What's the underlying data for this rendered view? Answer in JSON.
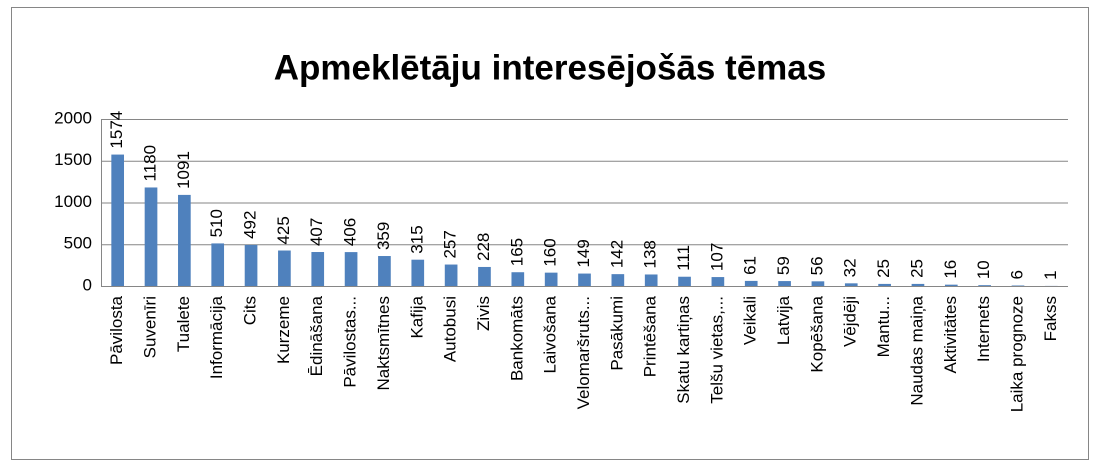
{
  "chart_data": {
    "type": "bar",
    "title": "Apmeklētāju interesējošās tēmas",
    "categories": [
      "Pāvilosta",
      "Suvenīri",
      "Tualete",
      "Informācija",
      "Cits",
      "Kurzeme",
      "Ēdināšana",
      "Pāvilostas...",
      "Naktsmītnes",
      "Kafija",
      "Autobusi",
      "Zivis",
      "Bankomāts",
      "Laivošana",
      "Velomaršruts...",
      "Pasākumi",
      "Printēšana",
      "Skatu kartiņas",
      "Telšu vietas,...",
      "Veikali",
      "Latvija",
      "Kopēšana",
      "Vējdēji",
      "Mantu...",
      "Naudas maiņa",
      "Aktivitātes",
      "Internets",
      "Laika prognoze",
      "Fakss"
    ],
    "values": [
      1574,
      1180,
      1091,
      510,
      492,
      425,
      407,
      406,
      359,
      315,
      257,
      228,
      165,
      160,
      149,
      142,
      138,
      111,
      107,
      61,
      59,
      56,
      32,
      25,
      25,
      16,
      10,
      6,
      1
    ],
    "color": "#4f81bd",
    "ylim": [
      0,
      2000
    ],
    "yticks": [
      0,
      500,
      1000,
      1500,
      2000
    ],
    "grid": true
  }
}
